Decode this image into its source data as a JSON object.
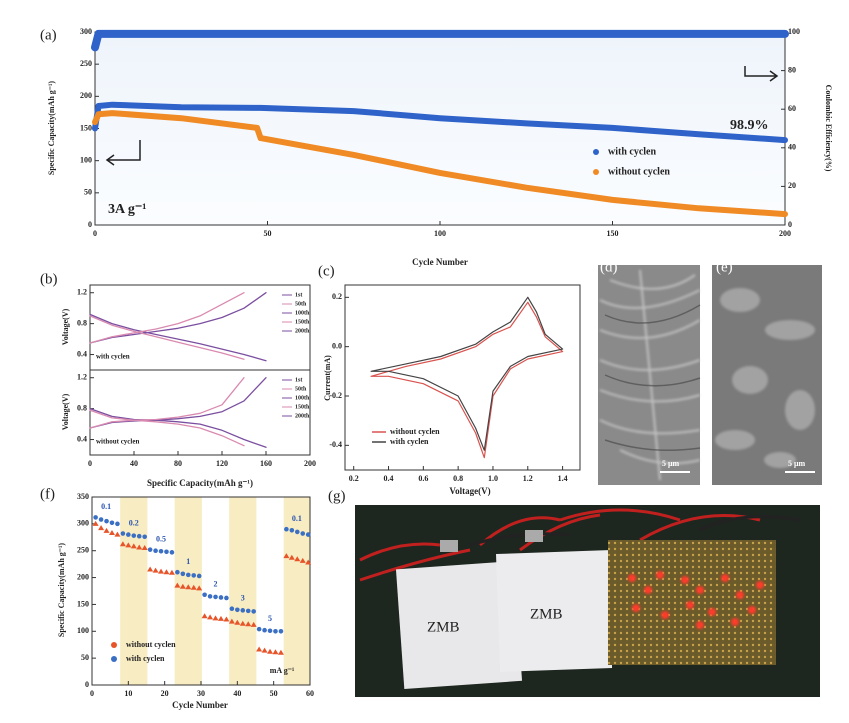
{
  "chart_data": [
    {
      "type": "line",
      "label": "(a)",
      "xlabel": "Cycle Number",
      "ylabel": "Specific Capacity(mAh g⁻¹)",
      "y2label": "Coulombic Efficiency(%)",
      "x": [
        0,
        1,
        5,
        25,
        47,
        48,
        75,
        100,
        125,
        150,
        175,
        200
      ],
      "xlim": [
        0,
        200
      ],
      "xticks": [
        0,
        50,
        100,
        150,
        200
      ],
      "ylim": [
        0,
        300
      ],
      "yticks": [
        0,
        50,
        100,
        150,
        200,
        250,
        300
      ],
      "y2lim": [
        0,
        100
      ],
      "y2ticks": [
        0,
        20,
        40,
        60,
        80,
        100
      ],
      "series": [
        {
          "name": "with cyclen",
          "color": "#2f63c9",
          "values": [
            150,
            185,
            187,
            183,
            182,
            182,
            177,
            166,
            158,
            151,
            141,
            132
          ]
        },
        {
          "name": "without cyclen",
          "color": "#f08a24",
          "values": [
            160,
            172,
            174,
            166,
            151,
            135,
            109,
            81,
            58,
            39,
            26,
            17
          ]
        },
        {
          "color": "#2f63c9",
          "axis": "y2",
          "values": [
            92,
            99,
            99,
            99,
            99,
            99,
            99,
            99,
            99,
            99,
            99,
            99
          ]
        }
      ],
      "annotations": [
        "3A g⁻¹",
        "98.9%"
      ]
    },
    {
      "type": "line",
      "label": "(b)",
      "ylabel": "Voltage(V)",
      "x": [
        0,
        20,
        40,
        60,
        80,
        100,
        120,
        140,
        160
      ],
      "xlim": [
        0,
        200
      ],
      "ylim": [
        0.2,
        1.3
      ],
      "yticks": [
        0.4,
        0.8,
        1.2
      ],
      "series": [
        {
          "color": "#7b4fa0",
          "values": [
            0.55,
            0.62,
            0.66,
            0.7,
            0.74,
            0.8,
            0.88,
            1.0,
            1.2
          ]
        },
        {
          "color": "#7b4fa0",
          "values": [
            0.92,
            0.8,
            0.72,
            0.66,
            0.6,
            0.54,
            0.47,
            0.4,
            0.32
          ]
        },
        {
          "color": "#d98ab0",
          "values": [
            0.55,
            0.63,
            0.68,
            0.73,
            0.8,
            0.9,
            1.05,
            1.2,
            null
          ]
        },
        {
          "color": "#d98ab0",
          "values": [
            0.9,
            0.78,
            0.7,
            0.63,
            0.56,
            0.49,
            0.42,
            0.34,
            null
          ]
        }
      ],
      "legend": [
        "1st",
        "50th",
        "100th",
        "150th",
        "200th"
      ],
      "annotations": [
        "with cyclen"
      ]
    },
    {
      "type": "line",
      "ylabel": "Voltage(V)",
      "xlabel": "Specific Capacity(mAh g⁻¹)",
      "x": [
        0,
        20,
        40,
        60,
        80,
        100,
        120,
        140,
        160
      ],
      "xlim": [
        0,
        200
      ],
      "xticks": [
        0,
        40,
        80,
        120,
        160,
        200
      ],
      "ylim": [
        0.2,
        1.3
      ],
      "yticks": [
        0.4,
        0.8,
        1.2
      ],
      "series": [
        {
          "color": "#7b4fa0",
          "values": [
            0.55,
            0.62,
            0.64,
            0.65,
            0.67,
            0.7,
            0.76,
            0.9,
            1.2
          ]
        },
        {
          "color": "#7b4fa0",
          "values": [
            0.8,
            0.7,
            0.66,
            0.65,
            0.63,
            0.6,
            0.52,
            0.4,
            0.3
          ]
        },
        {
          "color": "#d98ab0",
          "values": [
            0.55,
            0.63,
            0.65,
            0.66,
            0.69,
            0.74,
            0.85,
            1.2,
            null
          ]
        },
        {
          "color": "#d98ab0",
          "values": [
            0.78,
            0.68,
            0.65,
            0.63,
            0.6,
            0.55,
            0.45,
            0.32,
            null
          ]
        }
      ],
      "legend": [
        "1st",
        "50th",
        "100th",
        "150th",
        "200th"
      ],
      "annotations": [
        "without cyclen"
      ]
    },
    {
      "type": "line",
      "label": "(c)",
      "xlabel": "Voltage(V)",
      "ylabel": "Current(mA)",
      "xlim": [
        0.15,
        1.5
      ],
      "xticks": [
        0.2,
        0.4,
        0.6,
        0.8,
        {
          "value": 1.0,
          "label": "1.0"
        },
        1.2,
        1.4
      ],
      "ylim": [
        -0.5,
        0.25
      ],
      "yticks": [
        -0.4,
        -0.2,
        {
          "value": 0.0,
          "label": "0.0"
        },
        0.2
      ],
      "series": [
        {
          "name": "without cyclen",
          "color": "#d9534f",
          "x": [
            0.3,
            0.5,
            0.7,
            0.9,
            1.0,
            1.1,
            1.2,
            1.25,
            1.3,
            1.4,
            1.2,
            1.1,
            1.0,
            0.95,
            0.9,
            0.8,
            0.6,
            0.4,
            0.3
          ],
          "values": [
            -0.12,
            -0.08,
            -0.05,
            0.0,
            0.05,
            0.08,
            0.18,
            0.12,
            0.04,
            -0.02,
            -0.05,
            -0.09,
            -0.2,
            -0.45,
            -0.35,
            -0.22,
            -0.15,
            -0.12,
            -0.12
          ]
        },
        {
          "name": "with cyclen",
          "color": "#444444",
          "x": [
            0.3,
            0.5,
            0.7,
            0.9,
            1.0,
            1.1,
            1.2,
            1.25,
            1.3,
            1.4,
            1.2,
            1.1,
            1.0,
            0.95,
            0.9,
            0.8,
            0.6,
            0.4,
            0.3
          ],
          "values": [
            -0.1,
            -0.07,
            -0.04,
            0.01,
            0.06,
            0.1,
            0.2,
            0.14,
            0.05,
            -0.01,
            -0.04,
            -0.08,
            -0.18,
            -0.42,
            -0.33,
            -0.2,
            -0.13,
            -0.1,
            -0.1
          ]
        }
      ]
    },
    {
      "type": "scatter",
      "label": "(f)",
      "xlabel": "Cycle Number",
      "ylabel": "Specific Capacity(mAh g⁻¹)",
      "x": [
        1,
        2.5,
        4,
        5.5,
        7,
        8.5,
        10,
        11.5,
        13,
        14.5,
        16,
        17.5,
        19,
        20.5,
        22,
        23.5,
        25,
        26.5,
        28,
        29.5,
        31,
        32.5,
        34,
        35.5,
        37,
        38.5,
        40,
        41.5,
        43,
        44.5,
        46,
        47.5,
        49,
        50.5,
        52,
        53.5,
        55,
        56.5,
        58,
        59.5
      ],
      "xlim": [
        0,
        60
      ],
      "xticks": [
        0,
        10,
        20,
        30,
        40,
        50,
        60
      ],
      "ylim": [
        0,
        350
      ],
      "yticks": [
        0,
        50,
        100,
        150,
        200,
        250,
        300,
        350
      ],
      "series": [
        {
          "name": "without cyclen",
          "color": "#e8542a",
          "values": [
            300,
            292,
            287,
            283,
            280,
            262,
            260,
            258,
            256,
            255,
            215,
            213,
            211,
            210,
            209,
            185,
            183,
            182,
            181,
            180,
            128,
            126,
            124,
            123,
            122,
            118,
            116,
            114,
            113,
            112,
            66,
            64,
            62,
            61,
            60,
            240,
            237,
            234,
            231,
            228
          ]
        },
        {
          "name": "with cyclen",
          "color": "#3a6fc4",
          "values": [
            312,
            308,
            305,
            302,
            300,
            282,
            280,
            278,
            277,
            276,
            252,
            250,
            249,
            248,
            247,
            210,
            207,
            205,
            204,
            203,
            168,
            165,
            164,
            163,
            162,
            142,
            140,
            139,
            138,
            137,
            104,
            102,
            101,
            100,
            100,
            290,
            288,
            285,
            282,
            280
          ]
        }
      ],
      "rate_labels": [
        "0.1",
        "0.2",
        "0.5",
        "1",
        "2",
        "3",
        "5",
        "0.1"
      ],
      "unit_label": "mA g⁻¹"
    }
  ],
  "panels": {
    "d": {
      "label": "(d)",
      "scale_bar": "5 μm"
    },
    "e": {
      "label": "(e)",
      "scale_bar": "5 μm"
    },
    "g": {
      "label": "(g)",
      "texts": [
        "ZMB",
        "ZMB"
      ]
    }
  }
}
